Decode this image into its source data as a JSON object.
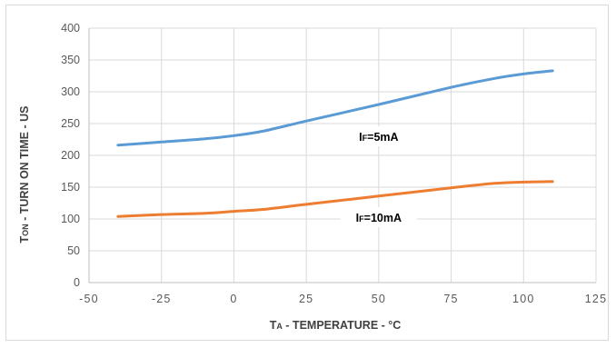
{
  "chart_data": {
    "type": "line",
    "xlabel": {
      "main": "T",
      "sub": "A",
      "rest": " - TEMPERATURE - °C"
    },
    "ylabel": {
      "main": "T",
      "sub": "ON",
      "rest": " - TURN ON TIME - US"
    },
    "xlim": [
      -50,
      125
    ],
    "ylim": [
      0,
      400
    ],
    "x_ticks": [
      -50,
      -25,
      0,
      25,
      50,
      75,
      100,
      125
    ],
    "y_ticks": [
      0,
      50,
      100,
      150,
      200,
      250,
      300,
      350,
      400
    ],
    "grid": true,
    "legend": "none",
    "series": [
      {
        "color": "#5b9bd5",
        "x": [
          -40,
          -25,
          -10,
          0,
          10,
          25,
          50,
          75,
          90,
          100,
          110
        ],
        "values": [
          216,
          221,
          226,
          231,
          238,
          254,
          280,
          307,
          321,
          328,
          333
        ]
      },
      {
        "color": "#ed7d31",
        "x": [
          -40,
          -25,
          -10,
          0,
          10,
          25,
          50,
          75,
          90,
          100,
          110
        ],
        "values": [
          104,
          107,
          109,
          112,
          115,
          123,
          136,
          149,
          156,
          158,
          159
        ]
      }
    ],
    "annotations": [
      {
        "main": "I",
        "sub": "F",
        "rest": "=5mA",
        "x": 50,
        "y": 230
      },
      {
        "main": "I",
        "sub": "F",
        "rest": "=10mA",
        "x": 50,
        "y": 103
      }
    ]
  }
}
